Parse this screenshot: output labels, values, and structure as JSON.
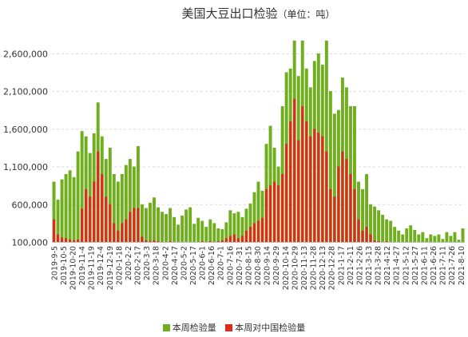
{
  "chart_data": {
    "type": "bar",
    "title": "美国大豆出口检验",
    "unit": "（单位：吨）",
    "xlabel": "",
    "ylabel": "",
    "ylim": [
      100000,
      2800000
    ],
    "y_ticks": [
      100000,
      600000,
      1100000,
      1600000,
      2100000,
      2600000
    ],
    "grid": true,
    "legend": "bottom",
    "x_tick_labels": [
      "2019-9-5",
      "2019-10-5",
      "2019-10-20",
      "2019-11-4",
      "2019-11-19",
      "2019-12-4",
      "2019-12-19",
      "2020-1-18",
      "2020-2-2",
      "2020-2-17",
      "2020-3-3",
      "2020-3-18",
      "2020-4-2",
      "2020-4-17",
      "2020-5-2",
      "2020-5-17",
      "2020-6-1",
      "2020-6-16",
      "2020-7-1",
      "2020-7-16",
      "2020-7-31",
      "2020-8-15",
      "2020-8-30",
      "2020-9-14",
      "2020-9-29",
      "2020-10-14",
      "2020-10-29",
      "2020-11-13",
      "2020-11-28",
      "2020-12-13",
      "2020-12-28",
      "2021-1-17",
      "2021-2-11",
      "2021-2-26",
      "2021-3-13",
      "2021-3-28",
      "2021-4-12",
      "2021-4-27",
      "2021-5-12",
      "2021-5-27",
      "2021-6-11",
      "2021-6-26",
      "2021-7-11",
      "2021-7-26",
      "2021-8-10"
    ],
    "series": [
      {
        "name": "本周检验量",
        "color": "#6fae1d",
        "values": [
          900000,
          660000,
          930000,
          1000000,
          1050000,
          960000,
          1300000,
          1570000,
          1500000,
          1280000,
          1540000,
          1950000,
          1500000,
          1200000,
          1350000,
          1000000,
          900000,
          1000000,
          1120000,
          1200000,
          1100000,
          1370000,
          600000,
          550000,
          620000,
          690000,
          560000,
          500000,
          470000,
          550000,
          430000,
          330000,
          450000,
          530000,
          560000,
          340000,
          420000,
          380000,
          300000,
          400000,
          350000,
          280000,
          270000,
          360000,
          520000,
          480000,
          500000,
          430000,
          540000,
          610000,
          760000,
          900000,
          780000,
          1400000,
          1640000,
          1350000,
          1100000,
          1900000,
          2350000,
          2400000,
          2770000,
          2300000,
          2770000,
          2400000,
          2150000,
          2500000,
          2600000,
          2450000,
          2770000,
          2100000,
          1800000,
          1850000,
          2280000,
          2150000,
          1900000,
          1900000,
          900000,
          800000,
          1000000,
          600000,
          570000,
          520000,
          460000,
          400000,
          380000,
          300000,
          250000,
          200000,
          280000,
          320000,
          260000,
          200000,
          230000,
          150000,
          200000,
          180000,
          200000,
          140000,
          230000,
          180000,
          230000,
          130000,
          280000
        ]
      },
      {
        "name": "本周对中国检验量",
        "color": "#e02a1c",
        "values": [
          400000,
          200000,
          160000,
          150000,
          130000,
          120000,
          130000,
          540000,
          800000,
          700000,
          900000,
          1300000,
          1000000,
          700000,
          600000,
          350000,
          250000,
          350000,
          400000,
          500000,
          550000,
          550000,
          170000,
          120000,
          110000,
          120000,
          110000,
          null,
          null,
          110000,
          null,
          null,
          null,
          null,
          null,
          null,
          null,
          110000,
          null,
          110000,
          null,
          110000,
          120000,
          150000,
          180000,
          200000,
          150000,
          180000,
          250000,
          300000,
          350000,
          380000,
          420000,
          800000,
          850000,
          900000,
          850000,
          1000000,
          1400000,
          1700000,
          2000000,
          1450000,
          1900000,
          1700000,
          1500000,
          1600000,
          1550000,
          1500000,
          1300000,
          800000,
          700000,
          1100000,
          1300000,
          1200000,
          1000000,
          800000,
          400000,
          250000,
          300000,
          200000,
          120000,
          110000,
          null,
          110000,
          null,
          null,
          null,
          null,
          null,
          null,
          null,
          null,
          null,
          null,
          null,
          null,
          null,
          null,
          null,
          null,
          null,
          null,
          null
        ]
      }
    ]
  }
}
